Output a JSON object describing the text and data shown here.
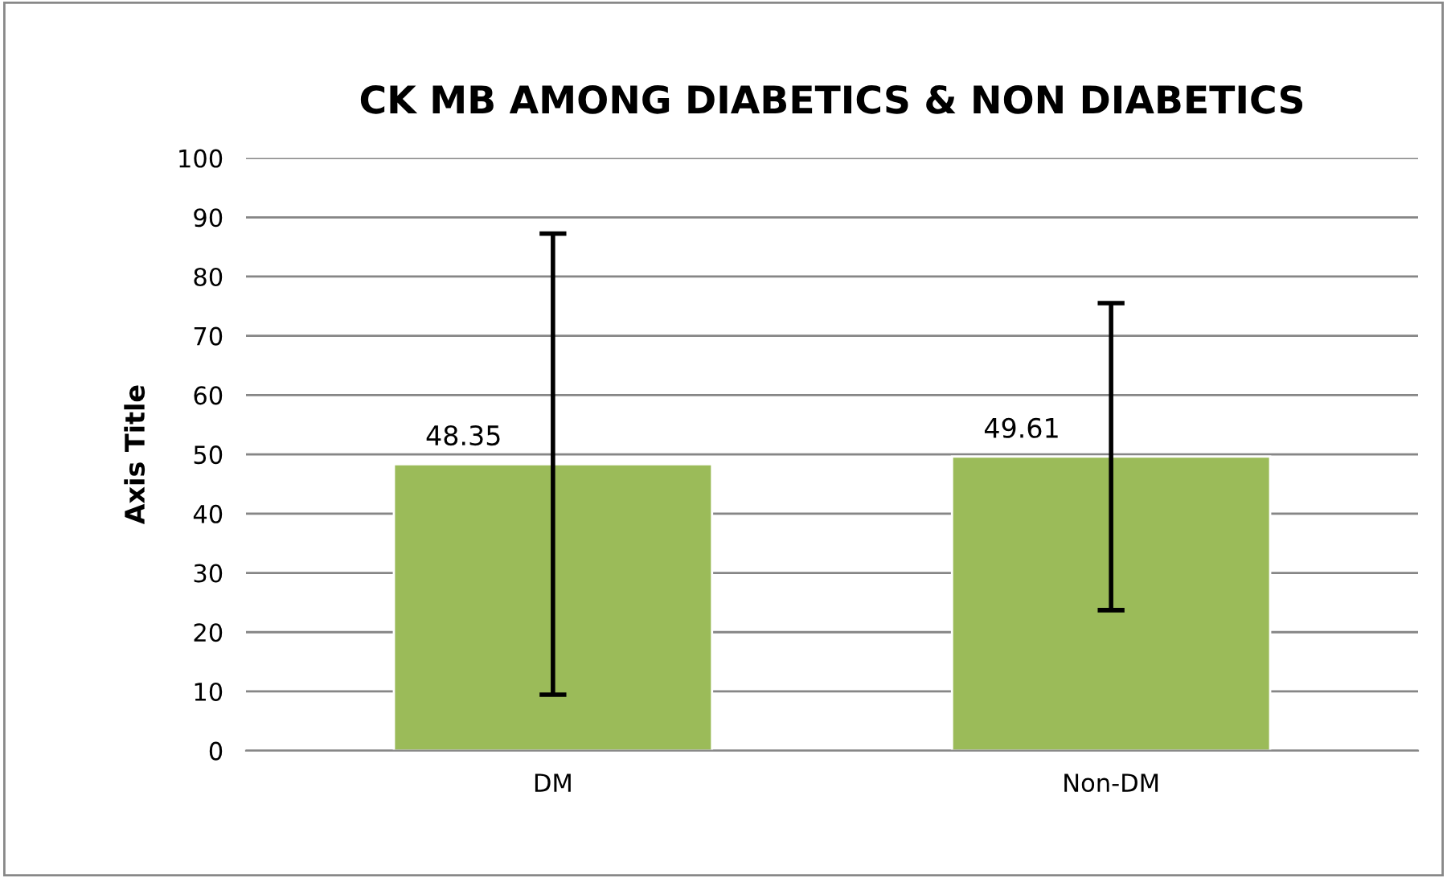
{
  "chart_data": {
    "type": "bar",
    "title": "CK MB AMONG DIABETICS & NON DIABETICS",
    "ylabel": "Axis Title",
    "categories": [
      "DM",
      "Non-DM"
    ],
    "series": [
      {
        "color": "#9bbb59",
        "values": [
          48.35,
          49.61
        ],
        "errors": [
          38.9,
          25.9
        ]
      }
    ],
    "ylim": [
      0,
      100
    ],
    "yticks": [
      0,
      10,
      20,
      30,
      40,
      50,
      60,
      70,
      80,
      90,
      100
    ],
    "grid": "y",
    "data_labels": true,
    "legend": false
  }
}
